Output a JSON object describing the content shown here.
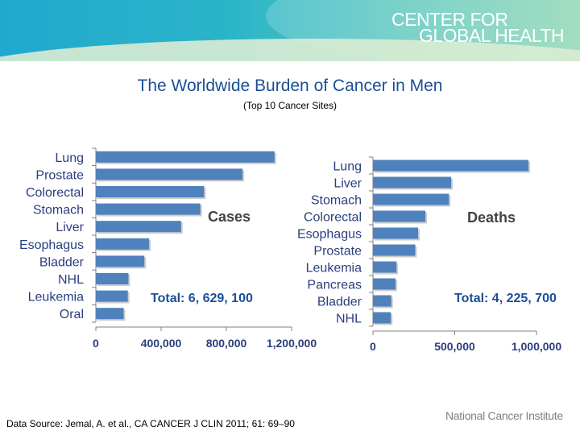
{
  "header": {
    "brand_line1": "CENTER FOR",
    "brand_line2": "GLOBAL HEALTH"
  },
  "title": "The Worldwide Burden of Cancer in Men",
  "subtitle": "(Top 10 Cancer Sites)",
  "chart_data": [
    {
      "type": "bar",
      "orientation": "horizontal",
      "title": "Cases",
      "total_label": "Total: 6, 629, 100",
      "categories": [
        "Lung",
        "Prostate",
        "Colorectal",
        "Stomach",
        "Liver",
        "Esophagus",
        "Bladder",
        "NHL",
        "Leukemia",
        "Oral"
      ],
      "values": [
        1095200,
        899000,
        663600,
        640600,
        522400,
        326600,
        297300,
        199600,
        195900,
        170500
      ],
      "xlim": [
        0,
        1200000
      ],
      "ticks": [
        0,
        400000,
        800000,
        1200000
      ],
      "tick_labels": [
        "0",
        "400,000",
        "800,000",
        "1,200,000"
      ],
      "bar_color": "#4f81bd"
    },
    {
      "type": "bar",
      "orientation": "horizontal",
      "title": "Deaths",
      "total_label": "Total: 4, 225, 700",
      "categories": [
        "Lung",
        "Liver",
        "Stomach",
        "Colorectal",
        "Esophagus",
        "Prostate",
        "Leukemia",
        "Pancreas",
        "Bladder",
        "NHL"
      ],
      "values": [
        951000,
        478300,
        464400,
        320600,
        276100,
        258400,
        143700,
        138100,
        112300,
        109500
      ],
      "xlim": [
        0,
        1000000
      ],
      "ticks": [
        0,
        500000,
        1000000
      ],
      "tick_labels": [
        "0",
        "500,000",
        "1,000,000"
      ],
      "bar_color": "#4f81bd"
    }
  ],
  "footer": {
    "source": "Data Source: Jemal, A. et al., CA CANCER J CLIN 2011; 61: 69–90",
    "institute": "National Cancer Institute"
  }
}
